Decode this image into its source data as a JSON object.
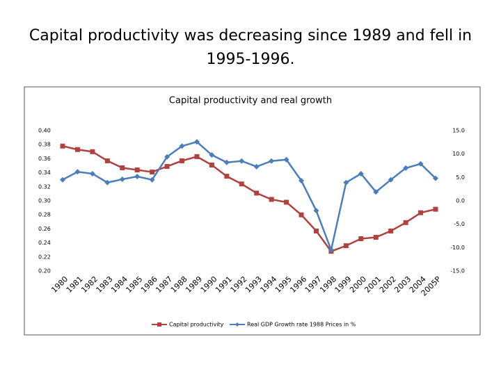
{
  "slide_title": "Capital productivity was decreasing since 1989 and fell in 1995-1996.",
  "chart_data": {
    "type": "line",
    "title": "Capital productivity and real growth",
    "categories": [
      "1980",
      "1981",
      "1982",
      "1983",
      "1984",
      "1985",
      "1986",
      "1987",
      "1988",
      "1989",
      "1990",
      "1991",
      "1992",
      "1993",
      "1994",
      "1995",
      "1996",
      "1997",
      "1998",
      "1999",
      "2000",
      "2001",
      "2002",
      "2003",
      "2004",
      "2005P"
    ],
    "series": [
      {
        "name": "Capital productivity",
        "color": "#b0413e",
        "marker": "square",
        "values": [
          0.378,
          0.373,
          0.37,
          0.357,
          0.347,
          0.344,
          0.341,
          0.349,
          0.357,
          0.363,
          0.351,
          0.335,
          0.324,
          0.311,
          0.302,
          0.298,
          0.28,
          0.257,
          0.228,
          0.236,
          0.246,
          0.248,
          0.257,
          0.269,
          0.283,
          0.288
        ]
      },
      {
        "name": "Real GDP Growth rate 1988 Prices in %",
        "color": "#4a7ebb",
        "marker": "diamond",
        "axis": "y2",
        "values": [
          4.5,
          6.2,
          5.8,
          3.9,
          4.6,
          5.2,
          4.5,
          9.4,
          11.7,
          12.6,
          9.8,
          8.2,
          8.5,
          7.3,
          8.5,
          8.8,
          4.3,
          -2.1,
          -10.5,
          3.9,
          5.8,
          1.9,
          4.5,
          7.0,
          7.9,
          4.8
        ]
      }
    ],
    "ylim": [
      0.2,
      0.4
    ],
    "yticks": [
      {
        "value": 0.2,
        "label": "0.20"
      },
      0.22,
      0.24,
      0.26,
      0.28,
      {
        "value": 0.3,
        "label": "0.30"
      },
      0.32,
      0.34,
      0.36,
      0.38,
      {
        "value": 0.4,
        "label": "0.40"
      }
    ],
    "y2lim": [
      -15,
      15
    ],
    "y2ticks": [
      {
        "value": -15,
        "label": "-15.0"
      },
      {
        "value": -10,
        "label": "-10.0"
      },
      {
        "value": -5,
        "label": "-5.0"
      },
      {
        "value": 0,
        "label": "0.0"
      },
      {
        "value": 5,
        "label": "5.0"
      },
      {
        "value": 10,
        "label": "10.0"
      },
      {
        "value": 15,
        "label": "15.0"
      }
    ],
    "grid": false,
    "legend": "bottom"
  }
}
